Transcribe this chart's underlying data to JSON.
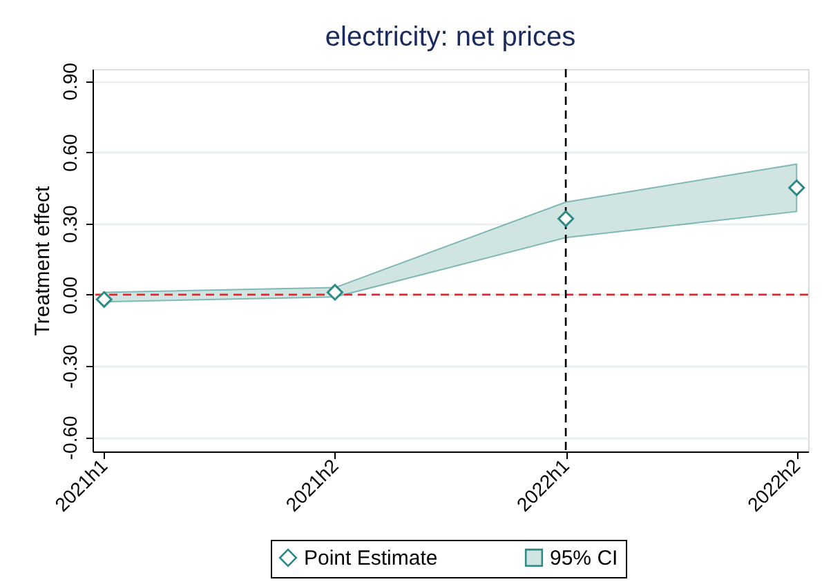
{
  "chart_data": {
    "type": "scatter",
    "title": "electricity: net prices",
    "ylabel": "Treatment effect",
    "categories": [
      "2021h1",
      "2021h2",
      "2022h1",
      "2022h2"
    ],
    "series": [
      {
        "name": "Point Estimate",
        "color": "#2b8a85",
        "values": [
          -0.02,
          0.01,
          0.32,
          0.45
        ]
      },
      {
        "name": "95% CI",
        "type": "area",
        "color": "#d0e4e2",
        "values": [
          null,
          null,
          null,
          null
        ],
        "lower": [
          -0.03,
          -0.01,
          0.24,
          0.35
        ],
        "upper": [
          0.01,
          0.03,
          0.39,
          0.55
        ]
      }
    ],
    "ylim": [
      -0.66,
      0.95
    ],
    "yticks": [
      {
        "value": -0.6,
        "label": "-0.60"
      },
      {
        "value": -0.3,
        "label": "-0.30"
      },
      {
        "value": 0,
        "label": "0.00"
      },
      {
        "value": 0.3,
        "label": "0.30"
      },
      {
        "value": 0.6,
        "label": "0.60"
      },
      {
        "value": 0.9,
        "label": "0.90"
      }
    ],
    "grid": "y",
    "legend": "bottom",
    "marker": "diamond",
    "ref_lines": [
      {
        "axis": "y",
        "value": 0,
        "color": "#e3262b",
        "line_style": "dashed"
      },
      {
        "axis": "x",
        "value": "2022h1",
        "color": "#000000",
        "line_style": "dashed"
      }
    ]
  }
}
